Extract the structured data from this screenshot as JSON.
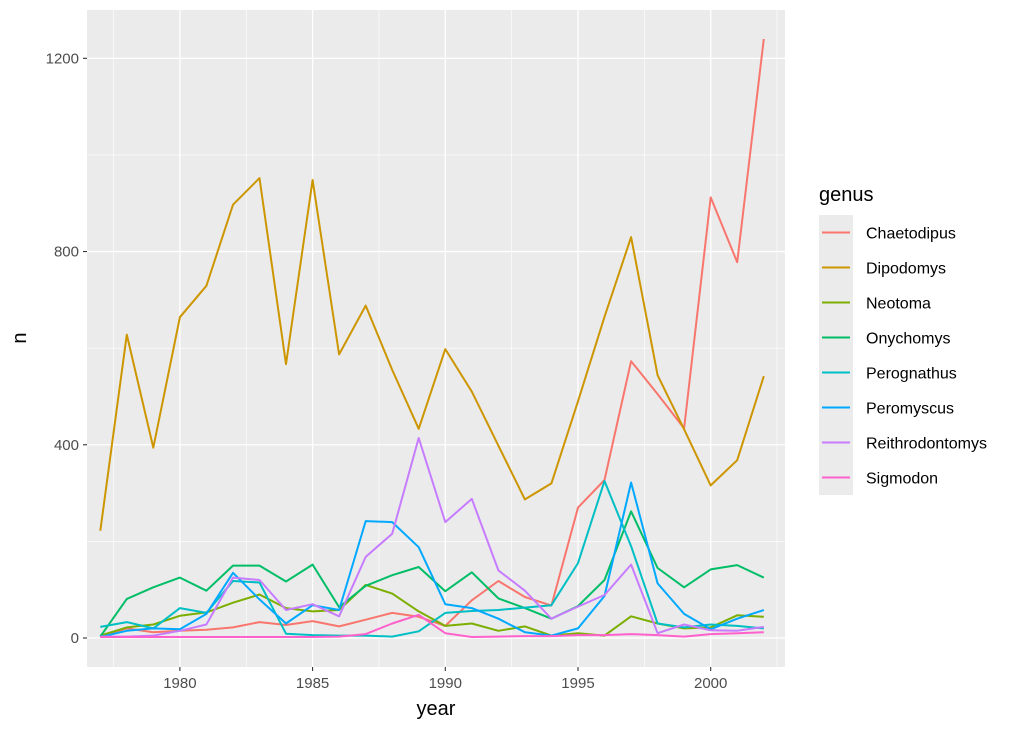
{
  "chart_data": {
    "type": "line",
    "xlabel": "year",
    "ylabel": "n",
    "xlim": [
      1976.5,
      2002.8
    ],
    "ylim": [
      -60,
      1300
    ],
    "x_ticks": [
      1980,
      1985,
      1990,
      1995,
      2000
    ],
    "y_ticks": [
      0,
      400,
      800,
      1200
    ],
    "grid": true,
    "legend": {
      "title": "genus",
      "placement": "right"
    },
    "x": [
      1977,
      1978,
      1979,
      1980,
      1981,
      1982,
      1983,
      1984,
      1985,
      1986,
      1987,
      1988,
      1989,
      1990,
      1991,
      1992,
      1993,
      1994,
      1995,
      1996,
      1997,
      1998,
      1999,
      2000,
      2001,
      2002
    ],
    "series": [
      {
        "name": "Chaetodipus",
        "color": "#F8766D",
        "values": [
          3,
          20,
          12,
          15,
          17,
          22,
          33,
          27,
          35,
          24,
          38,
          52,
          44,
          25,
          78,
          118,
          85,
          67,
          270,
          327,
          573,
          505,
          434,
          912,
          778,
          1240
        ]
      },
      {
        "name": "Dipodomys",
        "color": "#CD9600",
        "values": [
          222,
          628,
          394,
          664,
          729,
          897,
          952,
          567,
          948,
          587,
          688,
          555,
          433,
          598,
          510,
          398,
          287,
          320,
          490,
          665,
          830,
          544,
          432,
          316,
          368,
          542
        ]
      },
      {
        "name": "Neotoma",
        "color": "#7CAE00",
        "values": [
          5,
          22,
          28,
          46,
          53,
          73,
          90,
          62,
          55,
          58,
          110,
          92,
          55,
          25,
          30,
          15,
          24,
          5,
          10,
          5,
          45,
          30,
          20,
          22,
          47,
          44
        ]
      },
      {
        "name": "Onychomys",
        "color": "#00BE67",
        "values": [
          3,
          81,
          105,
          125,
          98,
          150,
          150,
          117,
          152,
          64,
          108,
          130,
          147,
          97,
          136,
          82,
          62,
          40,
          66,
          120,
          262,
          145,
          105,
          142,
          151,
          125
        ]
      },
      {
        "name": "Perognathus",
        "color": "#00BFC4",
        "values": [
          23,
          33,
          20,
          62,
          52,
          118,
          115,
          9,
          6,
          5,
          5,
          3,
          14,
          52,
          56,
          58,
          63,
          68,
          155,
          325,
          190,
          30,
          22,
          28,
          25,
          20
        ]
      },
      {
        "name": "Peromyscus",
        "color": "#00A9FF",
        "values": [
          2,
          15,
          20,
          18,
          50,
          135,
          80,
          30,
          68,
          58,
          242,
          240,
          188,
          70,
          62,
          40,
          12,
          5,
          20,
          87,
          322,
          113,
          50,
          18,
          40,
          58
        ]
      },
      {
        "name": "Reithrodontomys",
        "color": "#C77CFF",
        "values": [
          3,
          3,
          5,
          15,
          28,
          125,
          120,
          58,
          70,
          45,
          168,
          216,
          414,
          240,
          288,
          140,
          98,
          40,
          65,
          89,
          152,
          10,
          28,
          16,
          15,
          23
        ]
      },
      {
        "name": "Sigmodon",
        "color": "#FF61CC",
        "values": [
          2,
          2,
          2,
          2,
          2,
          2,
          2,
          2,
          2,
          3,
          8,
          30,
          48,
          10,
          2,
          3,
          4,
          4,
          6,
          6,
          8,
          6,
          3,
          8,
          10,
          12
        ]
      }
    ]
  }
}
